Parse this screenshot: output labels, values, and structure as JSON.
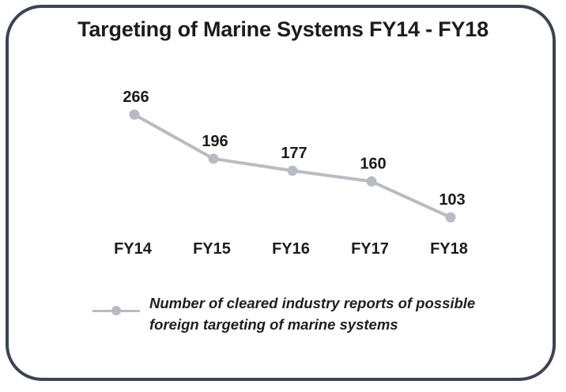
{
  "chart_data": {
    "type": "line",
    "title": "Targeting of Marine Systems FY14 - FY18",
    "categories": [
      "FY14",
      "FY15",
      "FY16",
      "FY17",
      "FY18"
    ],
    "series": [
      {
        "name": "Number of cleared industry reports of possible foreign targeting of marine systems",
        "values": [
          266,
          196,
          177,
          160,
          103
        ],
        "color": "#b8bcc2"
      }
    ],
    "ylim": [
      0,
      300
    ],
    "grid": false,
    "legend_position": "bottom",
    "data_labels": true
  }
}
